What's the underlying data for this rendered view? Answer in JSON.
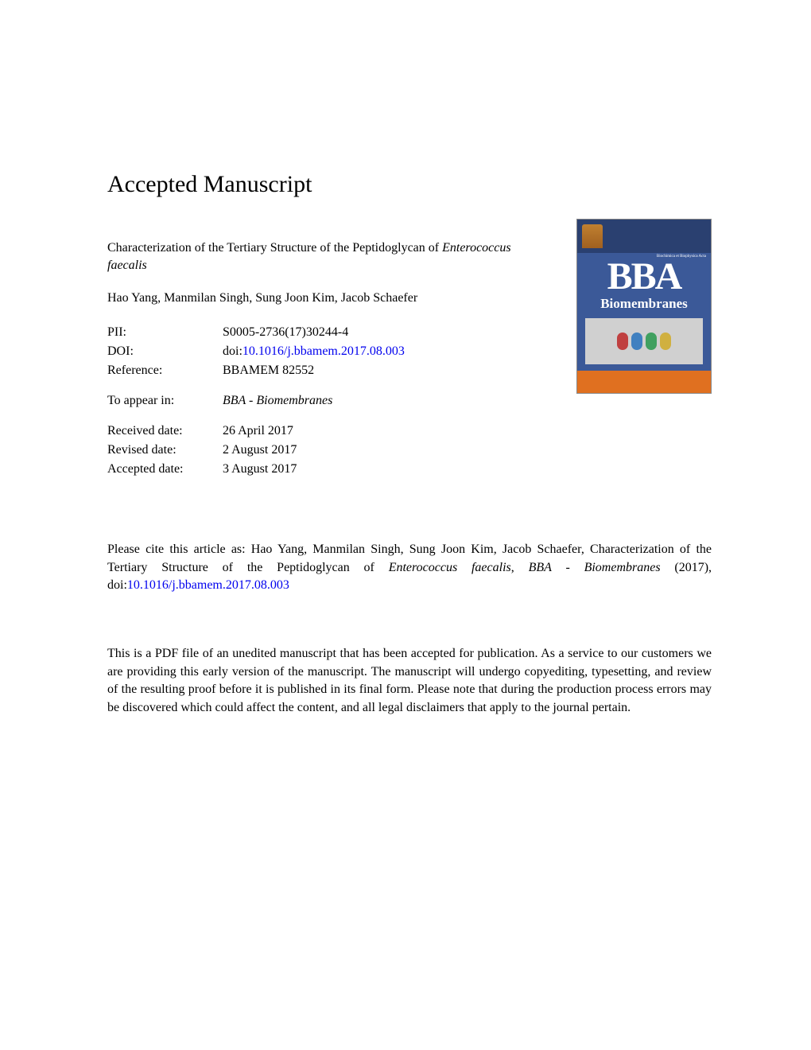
{
  "heading": "Accepted Manuscript",
  "title_pre": "Characterization of the Tertiary Structure of the Peptidoglycan of ",
  "title_italic": "Enterococcus faecalis",
  "authors": "Hao Yang, Manmilan Singh, Sung Joon Kim, Jacob Schaefer",
  "meta": {
    "pii_label": "PII:",
    "pii_value": "S0005-2736(17)30244-4",
    "doi_label": "DOI:",
    "doi_prefix": "doi:",
    "doi_link": "10.1016/j.bbamem.2017.08.003",
    "ref_label": "Reference:",
    "ref_value": "BBAMEM 82552",
    "appear_label": "To appear in:",
    "appear_value": "BBA - Biomembranes",
    "received_label": "Received date:",
    "received_value": "26 April 2017",
    "revised_label": "Revised date:",
    "revised_value": "2 August 2017",
    "accepted_label": "Accepted date:",
    "accepted_value": "3 August 2017"
  },
  "cite": {
    "pre": "Please cite this article as: Hao Yang, Manmilan Singh, Sung Joon Kim, Jacob Schaefer, Characterization of the Tertiary Structure of the Peptidoglycan of ",
    "italic1": "Enterococcus faecalis",
    "mid": ", ",
    "italic2": "BBA - Biomembranes",
    "post": " (2017), doi:",
    "link": "10.1016/j.bbamem.2017.08.003"
  },
  "disclaimer": "This is a PDF file of an unedited manuscript that has been accepted for publication. As a service to our customers we are providing this early version of the manuscript. The manuscript will undergo copyediting, typesetting, and review of the resulting proof before it is published in its final form. Please note that during the production process errors may be discovered which could affect the content, and all legal disclaimers that apply to the journal pertain.",
  "cover": {
    "bba": "BBA",
    "biom": "Biomembranes",
    "subtext": "Biochimica et Biophysica Acta",
    "colors": {
      "background": "#3b5998",
      "top_band": "#2a4070",
      "bottom_band": "#e07020",
      "text": "#ffffff"
    }
  },
  "link_color": "#0000ee"
}
